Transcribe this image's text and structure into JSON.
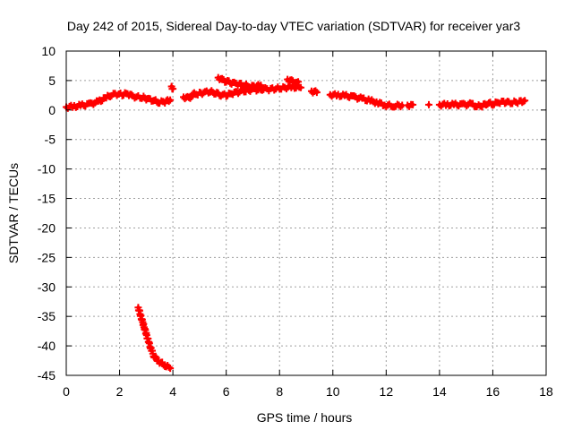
{
  "colors": {
    "series": "#ff0000",
    "axis": "#000000",
    "grid": "#a0a0a0",
    "background": "#ffffff"
  },
  "chart_data": {
    "type": "scatter",
    "title": "Day 242 of 2015, Sidereal Day-to-day VTEC variation (SDTVAR) for receiver yar3",
    "xlabel": "GPS time / hours",
    "ylabel": "SDTVAR / TECUs",
    "xlim": [
      0,
      18
    ],
    "ylim": [
      -45,
      10
    ],
    "xticks": [
      0,
      2,
      4,
      6,
      8,
      10,
      12,
      14,
      16,
      18
    ],
    "yticks": [
      10,
      5,
      0,
      -5,
      -10,
      -15,
      -20,
      -25,
      -30,
      -35,
      -40,
      -45
    ],
    "grid": true,
    "legend": "none",
    "series": [
      {
        "name": "SDTVAR",
        "segments": [
          [
            [
              0.0,
              0.5
            ],
            [
              0.3,
              0.6
            ],
            [
              0.6,
              0.8
            ],
            [
              0.9,
              1.0
            ],
            [
              1.2,
              1.4
            ],
            [
              1.5,
              2.1
            ],
            [
              1.7,
              2.6
            ],
            [
              1.9,
              2.7
            ],
            [
              2.1,
              2.6
            ],
            [
              2.3,
              2.8
            ],
            [
              2.5,
              2.3
            ],
            [
              2.7,
              2.2
            ],
            [
              2.9,
              2.1
            ],
            [
              3.1,
              1.8
            ],
            [
              3.3,
              1.6
            ],
            [
              3.5,
              1.3
            ],
            [
              3.7,
              1.4
            ],
            [
              3.9,
              1.7
            ]
          ],
          [
            [
              3.95,
              4.0
            ],
            [
              4.0,
              3.6
            ]
          ],
          [
            [
              4.4,
              2.2
            ],
            [
              4.6,
              2.0
            ],
            [
              4.8,
              2.7
            ],
            [
              5.0,
              2.8
            ],
            [
              5.2,
              3.0
            ],
            [
              5.4,
              3.1
            ],
            [
              5.6,
              2.9
            ],
            [
              5.8,
              2.6
            ],
            [
              6.0,
              2.5
            ],
            [
              6.2,
              2.8
            ],
            [
              6.4,
              3.0
            ],
            [
              6.6,
              3.2
            ],
            [
              6.8,
              3.3
            ],
            [
              7.0,
              3.5
            ],
            [
              7.2,
              3.4
            ],
            [
              7.4,
              3.6
            ],
            [
              7.6,
              3.5
            ],
            [
              7.8,
              3.6
            ],
            [
              8.0,
              3.7
            ],
            [
              8.2,
              3.8
            ],
            [
              8.5,
              3.9
            ],
            [
              8.8,
              3.8
            ]
          ],
          [
            [
              5.7,
              5.5
            ],
            [
              5.9,
              5.0
            ],
            [
              6.1,
              4.7
            ],
            [
              6.3,
              4.5
            ],
            [
              6.5,
              4.4
            ],
            [
              6.7,
              4.2
            ],
            [
              6.9,
              4.0
            ],
            [
              7.1,
              4.0
            ],
            [
              7.3,
              4.2
            ]
          ],
          [
            [
              8.3,
              5.2
            ],
            [
              8.5,
              4.8
            ],
            [
              8.7,
              4.8
            ]
          ],
          [
            [
              9.2,
              3.2
            ],
            [
              9.4,
              3.0
            ]
          ],
          [
            [
              9.9,
              2.6
            ],
            [
              10.2,
              2.5
            ],
            [
              10.5,
              2.4
            ],
            [
              10.8,
              2.2
            ],
            [
              11.1,
              1.9
            ],
            [
              11.4,
              1.6
            ],
            [
              11.7,
              1.2
            ],
            [
              12.0,
              0.8
            ],
            [
              12.3,
              0.7
            ],
            [
              12.6,
              0.8
            ]
          ],
          [
            [
              12.8,
              0.8
            ],
            [
              13.0,
              0.9
            ]
          ],
          [
            [
              13.6,
              0.9
            ]
          ],
          [
            [
              14.0,
              0.9
            ],
            [
              14.3,
              0.9
            ],
            [
              14.6,
              0.9
            ],
            [
              14.9,
              0.9
            ],
            [
              15.2,
              1.0
            ],
            [
              15.4,
              0.6
            ],
            [
              15.6,
              0.7
            ],
            [
              15.8,
              1.2
            ],
            [
              16.0,
              1.0
            ],
            [
              16.2,
              1.3
            ],
            [
              16.4,
              1.4
            ],
            [
              16.6,
              1.2
            ],
            [
              16.8,
              1.3
            ],
            [
              17.0,
              1.4
            ],
            [
              17.2,
              1.6
            ]
          ],
          [
            [
              2.7,
              -33.5
            ],
            [
              2.8,
              -35.0
            ],
            [
              2.9,
              -36.5
            ],
            [
              3.0,
              -38.0
            ],
            [
              3.1,
              -39.5
            ],
            [
              3.2,
              -40.8
            ],
            [
              3.3,
              -41.8
            ],
            [
              3.5,
              -42.7
            ],
            [
              3.7,
              -43.3
            ],
            [
              3.9,
              -43.8
            ]
          ]
        ]
      }
    ]
  }
}
